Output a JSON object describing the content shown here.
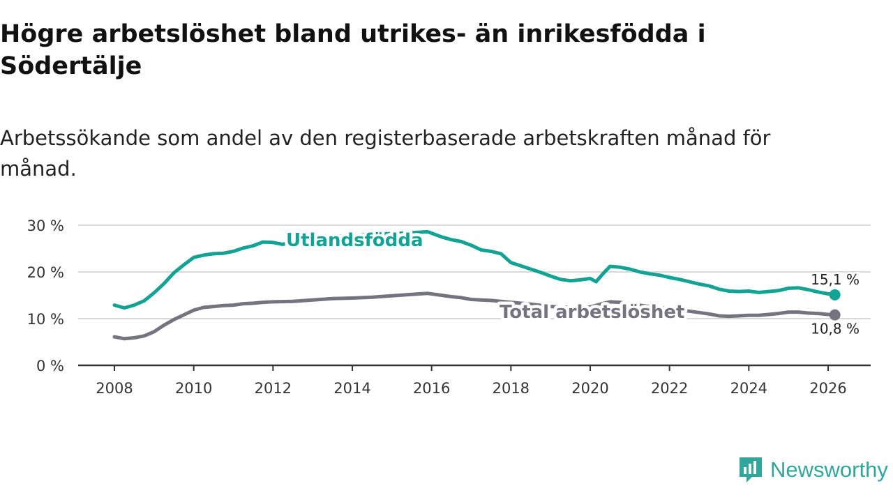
{
  "title": "Högre arbetslöshet bland utrikes- än inrikesfödda i Södertälje",
  "subtitle": "Arbetssökande som andel av den registerbaserade arbetskraften månad för månad.",
  "brand": {
    "name": "Newsworthy",
    "icon": "newsworthy-logo-icon"
  },
  "colors": {
    "accent": "#13a395",
    "gray": "#747380",
    "grid": "#d9d9d9",
    "axis": "#333333"
  },
  "chart_data": {
    "type": "line",
    "title": "Högre arbetslöshet bland utrikes- än inrikesfödda i Södertälje",
    "xlabel": "",
    "ylabel": "",
    "xlim": [
      2008,
      2026.5
    ],
    "ylim": [
      0,
      30
    ],
    "x_ticks": [
      2008,
      2010,
      2012,
      2014,
      2016,
      2018,
      2020,
      2022,
      2024,
      2026
    ],
    "y_ticks": [
      0,
      10,
      20,
      30
    ],
    "y_tick_labels": [
      "0 %",
      "10 %",
      "20 %",
      "30 %"
    ],
    "grid": true,
    "series": [
      {
        "name": "Utlandsfödda",
        "color": "#13a395",
        "end_label": "15,1 %",
        "points": [
          [
            2008.0,
            12.9
          ],
          [
            2008.25,
            12.3
          ],
          [
            2008.5,
            12.9
          ],
          [
            2008.75,
            13.8
          ],
          [
            2009.0,
            15.5
          ],
          [
            2009.25,
            17.5
          ],
          [
            2009.5,
            19.8
          ],
          [
            2009.75,
            21.5
          ],
          [
            2010.0,
            23.1
          ],
          [
            2010.25,
            23.6
          ],
          [
            2010.5,
            23.9
          ],
          [
            2010.75,
            24.0
          ],
          [
            2011.0,
            24.4
          ],
          [
            2011.25,
            25.1
          ],
          [
            2011.5,
            25.6
          ],
          [
            2011.75,
            26.4
          ],
          [
            2012.0,
            26.3
          ],
          [
            2012.25,
            25.9
          ],
          [
            2012.5,
            26.6
          ],
          [
            2013.0,
            27.1
          ],
          [
            2013.5,
            27.5
          ],
          [
            2014.0,
            27.8
          ],
          [
            2014.5,
            28.1
          ],
          [
            2015.0,
            28.2
          ],
          [
            2015.5,
            28.4
          ],
          [
            2015.9,
            28.6
          ],
          [
            2016.25,
            27.5
          ],
          [
            2016.5,
            26.9
          ],
          [
            2016.75,
            26.5
          ],
          [
            2017.0,
            25.7
          ],
          [
            2017.25,
            24.7
          ],
          [
            2017.5,
            24.4
          ],
          [
            2017.75,
            23.9
          ],
          [
            2018.0,
            22.0
          ],
          [
            2018.25,
            21.3
          ],
          [
            2018.5,
            20.6
          ],
          [
            2018.75,
            19.9
          ],
          [
            2019.0,
            19.1
          ],
          [
            2019.25,
            18.4
          ],
          [
            2019.5,
            18.1
          ],
          [
            2019.75,
            18.3
          ],
          [
            2020.0,
            18.6
          ],
          [
            2020.15,
            17.9
          ],
          [
            2020.3,
            19.4
          ],
          [
            2020.5,
            21.2
          ],
          [
            2020.75,
            21.0
          ],
          [
            2021.0,
            20.6
          ],
          [
            2021.25,
            20.0
          ],
          [
            2021.5,
            19.6
          ],
          [
            2021.75,
            19.3
          ],
          [
            2022.0,
            18.8
          ],
          [
            2022.25,
            18.4
          ],
          [
            2022.5,
            17.9
          ],
          [
            2022.75,
            17.4
          ],
          [
            2023.0,
            17.0
          ],
          [
            2023.25,
            16.3
          ],
          [
            2023.5,
            15.9
          ],
          [
            2023.75,
            15.8
          ],
          [
            2024.0,
            15.9
          ],
          [
            2024.25,
            15.6
          ],
          [
            2024.5,
            15.8
          ],
          [
            2024.75,
            16.0
          ],
          [
            2025.0,
            16.5
          ],
          [
            2025.25,
            16.6
          ],
          [
            2025.5,
            16.2
          ],
          [
            2025.75,
            15.7
          ],
          [
            2026.0,
            15.3
          ],
          [
            2026.17,
            15.1
          ]
        ]
      },
      {
        "name": "Total arbetslöshet",
        "color": "#747380",
        "end_label": "10,8 %",
        "points": [
          [
            2008.0,
            6.1
          ],
          [
            2008.25,
            5.7
          ],
          [
            2008.5,
            5.9
          ],
          [
            2008.75,
            6.3
          ],
          [
            2009.0,
            7.2
          ],
          [
            2009.25,
            8.6
          ],
          [
            2009.5,
            9.8
          ],
          [
            2009.75,
            10.8
          ],
          [
            2010.0,
            11.8
          ],
          [
            2010.25,
            12.4
          ],
          [
            2010.5,
            12.6
          ],
          [
            2010.75,
            12.8
          ],
          [
            2011.0,
            12.9
          ],
          [
            2011.25,
            13.2
          ],
          [
            2011.5,
            13.3
          ],
          [
            2011.75,
            13.5
          ],
          [
            2012.0,
            13.6
          ],
          [
            2012.5,
            13.7
          ],
          [
            2013.0,
            14.0
          ],
          [
            2013.5,
            14.3
          ],
          [
            2014.0,
            14.4
          ],
          [
            2014.5,
            14.6
          ],
          [
            2015.0,
            14.9
          ],
          [
            2015.5,
            15.2
          ],
          [
            2015.9,
            15.4
          ],
          [
            2016.25,
            15.0
          ],
          [
            2016.5,
            14.7
          ],
          [
            2016.75,
            14.5
          ],
          [
            2017.0,
            14.1
          ],
          [
            2017.25,
            14.0
          ],
          [
            2017.5,
            13.9
          ],
          [
            2017.75,
            13.7
          ],
          [
            2018.0,
            13.5
          ],
          [
            2018.5,
            13.1
          ],
          [
            2019.0,
            12.6
          ],
          [
            2019.5,
            12.4
          ],
          [
            2020.0,
            12.5
          ],
          [
            2020.3,
            13.2
          ],
          [
            2020.5,
            13.6
          ],
          [
            2020.75,
            13.5
          ],
          [
            2021.0,
            13.1
          ],
          [
            2021.5,
            12.6
          ],
          [
            2022.0,
            12.1
          ],
          [
            2022.5,
            11.6
          ],
          [
            2022.75,
            11.3
          ],
          [
            2023.0,
            11.0
          ],
          [
            2023.25,
            10.6
          ],
          [
            2023.5,
            10.5
          ],
          [
            2023.75,
            10.6
          ],
          [
            2024.0,
            10.7
          ],
          [
            2024.25,
            10.7
          ],
          [
            2024.5,
            10.9
          ],
          [
            2024.75,
            11.1
          ],
          [
            2025.0,
            11.4
          ],
          [
            2025.25,
            11.4
          ],
          [
            2025.5,
            11.2
          ],
          [
            2025.75,
            11.1
          ],
          [
            2026.0,
            10.9
          ],
          [
            2026.17,
            10.8
          ]
        ]
      }
    ]
  }
}
